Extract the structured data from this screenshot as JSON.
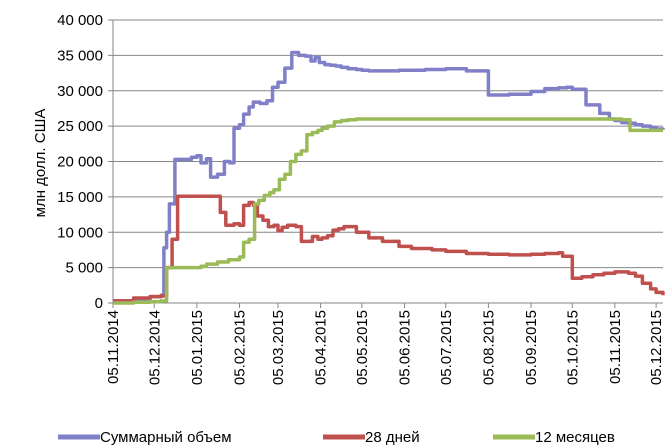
{
  "chart_data": {
    "type": "line",
    "ylabel": "млн долл. США",
    "xlabel": "",
    "ylim": [
      0,
      40000
    ],
    "yticks": [
      0,
      5000,
      10000,
      15000,
      20000,
      25000,
      30000,
      35000,
      40000
    ],
    "ytick_labels": [
      "0",
      "5 000",
      "10 000",
      "15 000",
      "20 000",
      "25 000",
      "30 000",
      "35 000",
      "40 000"
    ],
    "xlim": [
      "2014-11-05",
      "2015-12-10"
    ],
    "xticks": [
      "2014-11-05",
      "2014-12-05",
      "2015-01-05",
      "2015-02-05",
      "2015-03-05",
      "2015-04-05",
      "2015-05-05",
      "2015-06-05",
      "2015-07-05",
      "2015-08-05",
      "2015-09-05",
      "2015-10-05",
      "2015-11-05",
      "2015-12-05"
    ],
    "xtick_labels": [
      "05.11.2014",
      "05.12.2014",
      "05.01.2015",
      "05.02.2015",
      "05.03.2015",
      "05.04.2015",
      "05.05.2015",
      "05.06.2015",
      "05.07.2015",
      "05.08.2015",
      "05.09.2015",
      "05.10.2015",
      "05.11.2015",
      "05.12.2015"
    ],
    "grid": "horizontal",
    "legend": "bottom",
    "series": [
      {
        "name": "Суммарный объем",
        "color": "#8080c8",
        "x": [
          "2014-11-05",
          "2014-11-20",
          "2014-12-02",
          "2014-12-10",
          "2014-12-12",
          "2014-12-14",
          "2014-12-16",
          "2014-12-18",
          "2014-12-20",
          "2014-12-24",
          "2015-01-01",
          "2015-01-05",
          "2015-01-08",
          "2015-01-12",
          "2015-01-15",
          "2015-01-20",
          "2015-01-25",
          "2015-01-29",
          "2015-02-01",
          "2015-02-05",
          "2015-02-08",
          "2015-02-12",
          "2015-02-15",
          "2015-02-20",
          "2015-02-25",
          "2015-03-01",
          "2015-03-05",
          "2015-03-10",
          "2015-03-15",
          "2015-03-20",
          "2015-03-25",
          "2015-03-29",
          "2015-04-01",
          "2015-04-04",
          "2015-04-08",
          "2015-04-12",
          "2015-04-16",
          "2015-04-20",
          "2015-04-25",
          "2015-05-01",
          "2015-05-05",
          "2015-05-10",
          "2015-05-15",
          "2015-06-01",
          "2015-06-20",
          "2015-07-05",
          "2015-07-20",
          "2015-08-05",
          "2015-08-20",
          "2015-09-05",
          "2015-09-15",
          "2015-09-25",
          "2015-10-01",
          "2015-10-05",
          "2015-10-15",
          "2015-10-25",
          "2015-11-01",
          "2015-11-05",
          "2015-11-10",
          "2015-11-15",
          "2015-11-20",
          "2015-11-25",
          "2015-12-01",
          "2015-12-05",
          "2015-12-10"
        ],
        "y": [
          300,
          500,
          900,
          1100,
          7800,
          10000,
          14000,
          14000,
          20300,
          20300,
          20600,
          20800,
          19800,
          20400,
          17800,
          18200,
          20000,
          19800,
          24700,
          25200,
          26700,
          27700,
          28400,
          28200,
          28600,
          30500,
          31200,
          33200,
          35400,
          35000,
          34900,
          34200,
          34700,
          34000,
          33700,
          33600,
          33500,
          33300,
          33100,
          33000,
          32900,
          32800,
          32800,
          32900,
          33000,
          33100,
          32800,
          29400,
          29500,
          29900,
          30300,
          30400,
          30500,
          30200,
          28000,
          26800,
          26000,
          25800,
          25500,
          25400,
          25200,
          25000,
          24800,
          24600,
          24500
        ]
      },
      {
        "name": "28 дней",
        "color": "#c0504d",
        "x": [
          "2014-11-05",
          "2014-11-20",
          "2014-12-02",
          "2014-12-10",
          "2014-12-14",
          "2014-12-18",
          "2014-12-22",
          "2015-01-18",
          "2015-01-22",
          "2015-01-26",
          "2015-02-01",
          "2015-02-05",
          "2015-02-08",
          "2015-02-12",
          "2015-02-15",
          "2015-02-18",
          "2015-02-22",
          "2015-02-26",
          "2015-03-02",
          "2015-03-05",
          "2015-03-08",
          "2015-03-12",
          "2015-03-18",
          "2015-03-22",
          "2015-03-26",
          "2015-03-30",
          "2015-04-03",
          "2015-04-06",
          "2015-04-10",
          "2015-04-14",
          "2015-04-18",
          "2015-04-22",
          "2015-05-01",
          "2015-05-10",
          "2015-05-20",
          "2015-06-01",
          "2015-06-10",
          "2015-06-25",
          "2015-07-05",
          "2015-07-20",
          "2015-08-05",
          "2015-08-20",
          "2015-09-05",
          "2015-09-15",
          "2015-09-22",
          "2015-09-25",
          "2015-09-28",
          "2015-10-05",
          "2015-10-12",
          "2015-10-20",
          "2015-10-28",
          "2015-11-05",
          "2015-11-10",
          "2015-11-15",
          "2015-11-20",
          "2015-11-25",
          "2015-12-01",
          "2015-12-05",
          "2015-12-10"
        ],
        "y": [
          300,
          700,
          900,
          1000,
          5000,
          9000,
          15100,
          15100,
          12800,
          11000,
          11200,
          11000,
          13800,
          14200,
          13800,
          12300,
          11700,
          10800,
          11000,
          10200,
          10700,
          11000,
          10800,
          8700,
          8700,
          9400,
          9000,
          9200,
          9500,
          10300,
          10500,
          10800,
          10000,
          9200,
          8700,
          8000,
          7700,
          7500,
          7300,
          7000,
          6900,
          6800,
          6900,
          7000,
          7000,
          7100,
          6600,
          3500,
          3700,
          4000,
          4200,
          4400,
          4400,
          4200,
          3800,
          2800,
          2000,
          1500,
          1100
        ]
      },
      {
        "name": "12 месяцев",
        "color": "#9bbb59",
        "x": [
          "2014-11-05",
          "2014-11-20",
          "2014-12-02",
          "2014-12-10",
          "2014-12-14",
          "2014-12-18",
          "2014-12-22",
          "2015-01-08",
          "2015-01-12",
          "2015-01-20",
          "2015-01-28",
          "2015-02-05",
          "2015-02-08",
          "2015-02-12",
          "2015-02-16",
          "2015-02-19",
          "2015-02-23",
          "2015-02-27",
          "2015-03-02",
          "2015-03-06",
          "2015-03-10",
          "2015-03-14",
          "2015-03-18",
          "2015-03-22",
          "2015-03-26",
          "2015-03-30",
          "2015-04-03",
          "2015-04-06",
          "2015-04-10",
          "2015-04-15",
          "2015-04-20",
          "2015-04-25",
          "2015-05-01",
          "2015-06-01",
          "2015-07-01",
          "2015-08-01",
          "2015-09-01",
          "2015-10-01",
          "2015-11-01",
          "2015-11-05",
          "2015-11-10",
          "2015-11-16",
          "2015-12-10"
        ],
        "y": [
          0,
          100,
          200,
          300,
          5000,
          5000,
          5000,
          5200,
          5500,
          5800,
          6100,
          6500,
          8600,
          9000,
          14000,
          14500,
          15200,
          15600,
          16000,
          17500,
          18200,
          20000,
          21000,
          21500,
          23800,
          24100,
          24400,
          24700,
          25000,
          25600,
          25800,
          25900,
          26000,
          26000,
          26000,
          26000,
          26000,
          26000,
          26000,
          26000,
          25900,
          24400,
          24400
        ]
      }
    ]
  }
}
